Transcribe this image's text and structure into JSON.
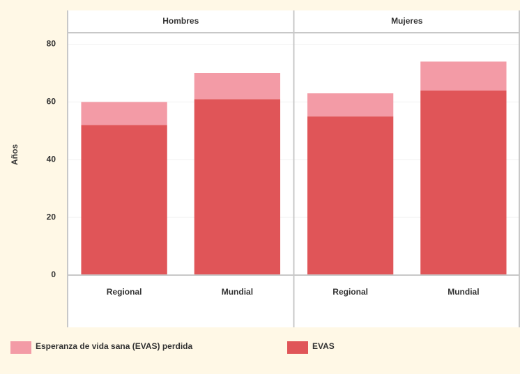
{
  "chart_data": {
    "type": "bar",
    "stacked": true,
    "ylabel": "Años",
    "facets": [
      "Hombres",
      "Mujeres"
    ],
    "categories": [
      "Regional",
      "Mundial"
    ],
    "series": [
      {
        "name": "Esperanza de vida sana (EVAS) perdida",
        "color": "#f39ba6",
        "values": [
          [
            8,
            9
          ],
          [
            8,
            10
          ]
        ]
      },
      {
        "name": "EVAS",
        "color": "#e05558",
        "values": [
          [
            52,
            61
          ],
          [
            55,
            64
          ]
        ]
      }
    ],
    "ylim": [
      0,
      84
    ],
    "yticks": [
      0,
      20,
      40,
      60,
      80
    ],
    "grid": true
  }
}
